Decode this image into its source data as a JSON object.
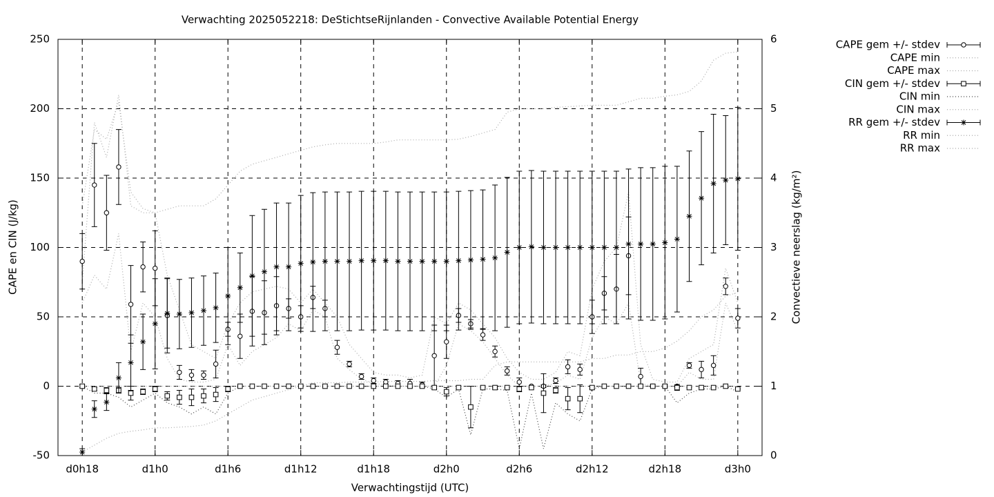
{
  "chart_data": {
    "type": "errorbar",
    "title": "Verwachting 2025052218: DeStichtseRijnlanden - Convective Available Potential Energy",
    "xlabel": "Verwachtingstijd (UTC)",
    "ylabel": "CAPE en CIN (J/kg)",
    "y2label": "Convectieve neerslag (kg/m²)",
    "x": [
      0,
      1,
      2,
      3,
      4,
      5,
      6,
      7,
      8,
      9,
      10,
      11,
      12,
      13,
      14,
      15,
      16,
      17,
      18,
      19,
      20,
      21,
      22,
      23,
      24,
      25,
      26,
      27,
      28,
      29,
      30,
      31,
      32,
      33,
      34,
      35,
      36,
      37,
      38,
      39,
      40,
      41,
      42,
      43,
      44,
      45,
      46,
      47,
      48,
      49,
      50,
      51,
      52,
      53,
      54
    ],
    "xlim": [
      -2,
      56
    ],
    "xticks": [
      {
        "value": 0,
        "label": "d0h18"
      },
      {
        "value": 6,
        "label": "d1h0"
      },
      {
        "value": 12,
        "label": "d1h6"
      },
      {
        "value": 18,
        "label": "d1h12"
      },
      {
        "value": 24,
        "label": "d1h18"
      },
      {
        "value": 30,
        "label": "d2h0"
      },
      {
        "value": 36,
        "label": "d2h6"
      },
      {
        "value": 42,
        "label": "d2h12"
      },
      {
        "value": 48,
        "label": "d2h18"
      },
      {
        "value": 54,
        "label": "d3h0"
      }
    ],
    "ylim": [
      -50,
      250
    ],
    "yticks": [
      -50,
      0,
      50,
      100,
      150,
      200,
      250
    ],
    "y2lim": [
      0,
      6
    ],
    "y2ticks": [
      0,
      1,
      2,
      3,
      4,
      5,
      6
    ],
    "grid": true,
    "legend": "right-outside",
    "series": [
      {
        "name": "CAPE gem +/- stdev",
        "kind": "errorbar",
        "marker": "circle",
        "color": "#000000",
        "values": [
          90,
          145,
          125,
          158,
          59,
          86,
          85,
          51,
          10,
          8,
          8,
          16,
          41,
          36,
          54,
          53,
          58,
          56,
          50,
          64,
          56,
          28,
          16,
          7,
          4,
          3,
          2,
          2,
          1,
          22,
          32,
          51,
          45,
          37,
          25,
          11,
          3,
          0,
          0,
          4,
          14,
          12,
          50,
          67,
          70,
          94,
          7,
          0,
          0,
          0,
          15,
          12,
          15,
          72,
          49
        ],
        "errors": [
          20,
          30,
          27,
          27,
          28,
          18,
          27,
          27,
          5,
          4,
          3,
          10,
          5,
          16,
          25,
          23,
          21,
          7,
          8,
          8,
          6,
          5,
          2,
          2,
          2,
          2,
          2,
          3,
          2,
          22,
          12,
          5,
          3,
          4,
          4,
          3,
          3,
          0,
          1,
          2,
          5,
          4,
          12,
          12,
          25,
          28,
          6,
          1,
          1,
          1,
          2,
          6,
          7,
          6,
          7
        ]
      },
      {
        "name": "CAPE min",
        "kind": "line",
        "color": "#a8a8a8",
        "values": [
          60,
          80,
          70,
          110,
          25,
          60,
          50,
          20,
          5,
          3,
          3,
          5,
          30,
          15,
          25,
          30,
          35,
          45,
          40,
          55,
          50,
          20,
          12,
          5,
          2,
          1,
          0,
          0,
          0,
          0,
          15,
          45,
          40,
          32,
          20,
          8,
          0,
          0,
          0,
          2,
          8,
          5,
          35,
          50,
          45,
          60,
          2,
          0,
          0,
          0,
          10,
          5,
          5,
          60,
          40
        ]
      },
      {
        "name": "CAPE max",
        "kind": "line",
        "color": "#a8a8a8",
        "values": [
          130,
          185,
          178,
          205,
          140,
          128,
          125,
          80,
          55,
          30,
          25,
          20,
          45,
          60,
          68,
          70,
          72,
          70,
          60,
          70,
          60,
          50,
          30,
          20,
          10,
          8,
          8,
          6,
          8,
          50,
          45,
          60,
          55,
          45,
          35,
          20,
          10,
          5,
          5,
          10,
          25,
          22,
          70,
          90,
          100,
          140,
          30,
          5,
          3,
          3,
          20,
          25,
          30,
          85,
          60
        ]
      },
      {
        "name": "CIN gem +/- stdev",
        "kind": "errorbar",
        "marker": "square",
        "color": "#000000",
        "values": [
          0,
          -2,
          -3,
          -3,
          -5,
          -4,
          -2,
          -7,
          -8,
          -8,
          -7,
          -6,
          -2,
          0,
          0,
          0,
          0,
          0,
          0,
          0,
          0,
          0,
          0,
          0,
          0,
          0,
          0,
          0,
          0,
          -1,
          -4,
          -1,
          -15,
          -1,
          -1,
          -1,
          -2,
          -1,
          -5,
          -3,
          -9,
          -9,
          -1,
          0,
          0,
          0,
          0,
          0,
          0,
          -1,
          -1,
          -1,
          -1,
          0,
          -2
        ],
        "errors": [
          1,
          1,
          2,
          2,
          5,
          2,
          2,
          3,
          5,
          6,
          5,
          5,
          2,
          0,
          0,
          0,
          0,
          0,
          0,
          0,
          0,
          0,
          0,
          0,
          0,
          0,
          0,
          0,
          0,
          1,
          3,
          1,
          15,
          0,
          0,
          0,
          2,
          0,
          14,
          2,
          8,
          10,
          1,
          0,
          0,
          0,
          0,
          0,
          0,
          2,
          0,
          0,
          0,
          0,
          0
        ]
      },
      {
        "name": "CIN min",
        "kind": "line",
        "color": "#404040",
        "values": [
          0,
          -5,
          -5,
          -8,
          -15,
          -10,
          -5,
          -12,
          -15,
          -20,
          -15,
          -20,
          -5,
          0,
          0,
          0,
          0,
          0,
          0,
          0,
          0,
          0,
          0,
          0,
          0,
          0,
          0,
          0,
          0,
          -2,
          -8,
          -2,
          -35,
          -2,
          -2,
          -3,
          -45,
          -5,
          -45,
          -12,
          -20,
          -25,
          -2,
          0,
          0,
          0,
          0,
          0,
          0,
          -12,
          -5,
          -2,
          -2,
          0,
          -4
        ]
      },
      {
        "name": "CIN max",
        "kind": "line",
        "color": "#a8a8a8",
        "values": [
          0,
          0,
          0,
          0,
          0,
          0,
          0,
          0,
          0,
          0,
          0,
          0,
          0,
          0,
          0,
          0,
          0,
          0,
          0,
          0,
          0,
          0,
          0,
          0,
          0,
          0,
          0,
          0,
          0,
          0,
          0,
          0,
          0,
          0,
          0,
          0,
          0,
          0,
          0,
          0,
          0,
          0,
          0,
          0,
          0,
          0,
          0,
          0,
          0,
          0,
          0,
          0,
          0,
          0,
          0
        ]
      },
      {
        "name": "RR gem +/- stdev",
        "kind": "errorbar",
        "marker": "star",
        "color": "#000000",
        "axis": "y2",
        "values": [
          0.05,
          0.67,
          0.77,
          1.12,
          1.34,
          1.64,
          1.9,
          2.05,
          2.04,
          2.06,
          2.09,
          2.13,
          2.3,
          2.42,
          2.59,
          2.65,
          2.72,
          2.72,
          2.77,
          2.79,
          2.8,
          2.8,
          2.8,
          2.81,
          2.81,
          2.81,
          2.8,
          2.8,
          2.8,
          2.8,
          2.8,
          2.81,
          2.82,
          2.83,
          2.85,
          2.93,
          3.0,
          3.01,
          3.0,
          3.0,
          3.0,
          3.0,
          3.0,
          3.0,
          3.0,
          3.05,
          3.05,
          3.05,
          3.07,
          3.12,
          3.45,
          3.71,
          3.92,
          3.97,
          3.99
        ],
        "errors": [
          0.05,
          0.12,
          0.12,
          0.22,
          0.4,
          0.4,
          0.65,
          0.5,
          0.5,
          0.5,
          0.5,
          0.5,
          0.7,
          0.5,
          0.87,
          0.9,
          0.92,
          0.92,
          0.98,
          1.0,
          1.0,
          1.0,
          1.0,
          1.0,
          1.0,
          1.0,
          1.0,
          1.0,
          1.0,
          1.0,
          1.0,
          1.0,
          1.0,
          1.0,
          1.05,
          1.08,
          1.1,
          1.1,
          1.1,
          1.1,
          1.1,
          1.1,
          1.1,
          1.1,
          1.1,
          1.08,
          1.1,
          1.1,
          1.1,
          1.05,
          0.94,
          0.96,
          1.0,
          0.93,
          1.03
        ]
      },
      {
        "name": "RR min",
        "kind": "line",
        "color": "#a8a8a8",
        "axis": "y2",
        "values": [
          0.05,
          0.15,
          0.25,
          0.32,
          0.35,
          0.37,
          0.4,
          0.4,
          0.41,
          0.42,
          0.44,
          0.5,
          0.6,
          0.7,
          0.8,
          0.85,
          0.9,
          0.95,
          1.0,
          1.05,
          1.05,
          1.05,
          1.06,
          1.06,
          1.06,
          1.07,
          1.07,
          1.07,
          1.07,
          1.08,
          1.08,
          1.08,
          1.1,
          1.1,
          1.3,
          1.35,
          1.35,
          1.35,
          1.35,
          1.35,
          1.35,
          1.35,
          1.4,
          1.4,
          1.45,
          1.45,
          1.5,
          1.5,
          1.55,
          1.65,
          1.8,
          2.0,
          2.1,
          2.3,
          2.35
        ]
      },
      {
        "name": "RR max",
        "kind": "line",
        "color": "#a8a8a8",
        "axis": "y2",
        "values": [
          2.5,
          4.8,
          4.3,
          5.2,
          3.6,
          3.5,
          3.5,
          3.55,
          3.6,
          3.6,
          3.6,
          3.7,
          3.9,
          4.1,
          4.2,
          4.25,
          4.3,
          4.35,
          4.4,
          4.45,
          4.48,
          4.5,
          4.5,
          4.5,
          4.5,
          4.52,
          4.55,
          4.55,
          4.55,
          4.55,
          4.55,
          4.56,
          4.6,
          4.65,
          4.7,
          4.95,
          5.0,
          5.0,
          5.0,
          5.02,
          5.03,
          5.04,
          5.05,
          5.05,
          5.05,
          5.1,
          5.15,
          5.15,
          5.18,
          5.2,
          5.25,
          5.4,
          5.7,
          5.8,
          5.82
        ]
      }
    ]
  }
}
